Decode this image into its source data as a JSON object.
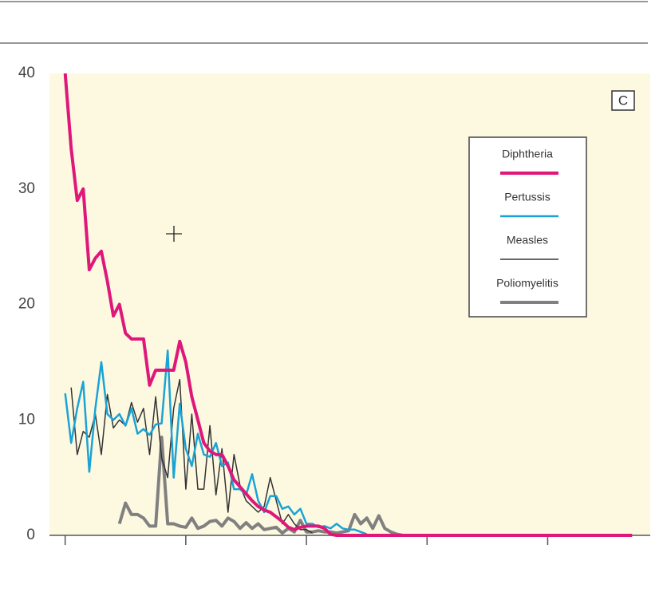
{
  "chart_data": {
    "type": "line",
    "panel_label": "C",
    "xlim": [
      -2.6,
      97
    ],
    "xticks": [
      0,
      20,
      40,
      60,
      80
    ],
    "ylim": [
      0,
      40
    ],
    "yticks": [
      0,
      10,
      20,
      30,
      40
    ],
    "legend": "upper right",
    "series": [
      {
        "name": "Diphtheria",
        "color": "#e0177a",
        "width": 4,
        "x": [
          0,
          1,
          2,
          3,
          4,
          5,
          6,
          7,
          8,
          9,
          10,
          11,
          12,
          13,
          14,
          15,
          16,
          17,
          18,
          19,
          20,
          21,
          22,
          23,
          24,
          25,
          26,
          27,
          28,
          29,
          30,
          31,
          32,
          33,
          34,
          35,
          36,
          37,
          38,
          39,
          40,
          41,
          42,
          43,
          44,
          45,
          50,
          60,
          70,
          80,
          94
        ],
        "values": [
          40,
          33.5,
          29,
          30,
          23,
          24,
          24.6,
          22,
          19,
          20,
          17.5,
          17,
          17,
          17,
          13,
          14.3,
          14.3,
          14.3,
          14.3,
          16.8,
          15,
          12,
          10,
          8,
          7.3,
          7,
          7,
          6,
          4.8,
          4.2,
          3.6,
          3,
          2.5,
          2.2,
          2,
          1.6,
          1.2,
          0.7,
          0.5,
          0.7,
          0.8,
          0.8,
          0.8,
          0.6,
          0.1,
          0,
          0,
          0,
          0,
          0,
          0
        ]
      },
      {
        "name": "Pertussis",
        "color": "#1aa3d6",
        "width": 2.5,
        "x": [
          0,
          1,
          2,
          3,
          4,
          5,
          6,
          7,
          8,
          9,
          10,
          11,
          12,
          13,
          14,
          15,
          16,
          17,
          18,
          19,
          20,
          21,
          22,
          23,
          24,
          25,
          26,
          27,
          28,
          29,
          30,
          31,
          32,
          33,
          34,
          35,
          36,
          37,
          38,
          39,
          40,
          41,
          42,
          43,
          44,
          45,
          46,
          47,
          48,
          49,
          50
        ],
        "values": [
          12.3,
          8,
          11,
          13.3,
          5.5,
          11,
          15,
          10.5,
          10,
          10.5,
          9.5,
          11,
          8.8,
          9.2,
          8.7,
          9.6,
          9.7,
          16,
          5,
          11.4,
          7.5,
          6,
          8.8,
          7,
          6.8,
          8,
          6,
          6.3,
          4,
          4,
          3.5,
          5.3,
          3,
          2,
          3.4,
          3.4,
          2.3,
          2.5,
          1.8,
          2.3,
          1,
          1,
          0.7,
          0.8,
          0.6,
          1,
          0.6,
          0.5,
          0.5,
          0.3,
          0.1
        ]
      },
      {
        "name": "Measles",
        "color": "#333333",
        "width": 1.5,
        "x": [
          1,
          2,
          3,
          4,
          5,
          6,
          7,
          8,
          9,
          10,
          11,
          12,
          13,
          14,
          15,
          16,
          17,
          18,
          19,
          20,
          21,
          22,
          23,
          24,
          25,
          26,
          27,
          28,
          29,
          30,
          31,
          32,
          33,
          34,
          35,
          36,
          37,
          38,
          39,
          40,
          41
        ],
        "values": [
          12.8,
          7,
          9,
          8.5,
          10.5,
          7,
          12.2,
          9.3,
          10,
          9.5,
          11.5,
          9.8,
          11,
          7,
          12,
          6.7,
          5,
          11,
          13.5,
          4,
          10.5,
          4,
          4,
          9.5,
          3.5,
          7.5,
          2,
          7,
          4.3,
          3,
          2.5,
          2,
          2.5,
          5,
          3,
          1,
          1.8,
          1,
          0.5,
          0.5,
          0.2
        ]
      },
      {
        "name": "Poliomyelitis",
        "color": "#808080",
        "width": 4,
        "x": [
          9,
          10,
          11,
          12,
          13,
          14,
          15,
          16,
          17,
          18,
          19,
          20,
          21,
          22,
          23,
          24,
          25,
          26,
          27,
          28,
          29,
          30,
          31,
          32,
          33,
          34,
          35,
          36,
          37,
          38,
          39,
          40,
          41,
          42,
          43,
          44,
          45,
          46,
          47,
          48,
          49,
          50,
          51,
          52,
          53,
          54,
          55,
          56
        ],
        "values": [
          1,
          2.8,
          1.8,
          1.8,
          1.5,
          0.8,
          0.8,
          8.5,
          1,
          1,
          0.8,
          0.7,
          1.5,
          0.6,
          0.8,
          1.2,
          1.3,
          0.8,
          1.5,
          1.2,
          0.6,
          1.1,
          0.6,
          1,
          0.5,
          0.6,
          0.7,
          0.2,
          0.6,
          0.3,
          1.3,
          0.3,
          0.3,
          0.4,
          0.3,
          0.3,
          0.2,
          0.3,
          0.4,
          1.8,
          1,
          1.5,
          0.6,
          1.7,
          0.6,
          0.3,
          0.1,
          0
        ]
      }
    ]
  }
}
